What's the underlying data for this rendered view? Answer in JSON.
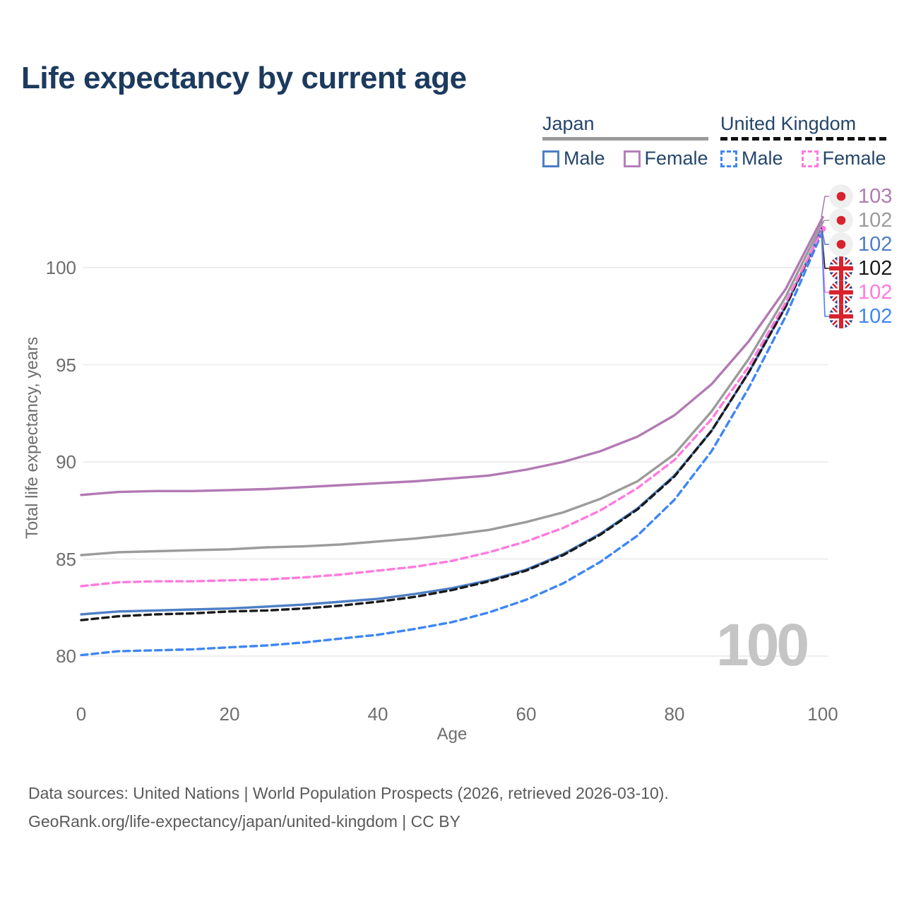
{
  "title": "Life expectancy by current age",
  "legend": {
    "groups": [
      {
        "label": "Japan",
        "items": [
          {
            "label": "Male"
          },
          {
            "label": "Female"
          }
        ]
      },
      {
        "label": "United Kingdom",
        "items": [
          {
            "label": "Male"
          },
          {
            "label": "Female"
          }
        ]
      }
    ]
  },
  "watermark": "100",
  "footer": {
    "line1": "Data sources: United Nations | World Population Prospects (2026, retrieved 2026-03-10).",
    "line2": "GeoRank.org/life-expectancy/japan/united-kingdom | CC BY"
  },
  "chart_data": {
    "type": "line",
    "title": "Life expectancy by current age",
    "xlabel": "Age",
    "ylabel": "Total life expectancy, years",
    "x_ticks": [
      0,
      20,
      40,
      60,
      80,
      100
    ],
    "y_ticks": [
      80,
      85,
      90,
      95,
      100
    ],
    "xlim": [
      0,
      100
    ],
    "ylim": [
      78.5,
      103.5
    ],
    "grid": "horizontal",
    "legend_position": "top-right",
    "x": [
      0,
      5,
      10,
      15,
      20,
      25,
      30,
      35,
      40,
      45,
      50,
      55,
      60,
      65,
      70,
      75,
      80,
      85,
      90,
      95,
      100
    ],
    "series": [
      {
        "id": "japan-male",
        "name": "Japan Male",
        "color": "#4d7fc4",
        "dash": "solid",
        "values": [
          82.15,
          82.3,
          82.35,
          82.4,
          82.45,
          82.55,
          82.65,
          82.8,
          82.95,
          83.2,
          83.5,
          83.9,
          84.45,
          85.25,
          86.3,
          87.6,
          89.3,
          91.6,
          94.6,
          98.0,
          102.1
        ]
      },
      {
        "id": "japan-all",
        "name": "Japan (both sexes)",
        "color": "#9b9b9b",
        "dash": "solid",
        "values": [
          85.2,
          85.35,
          85.4,
          85.45,
          85.5,
          85.6,
          85.65,
          85.75,
          85.9,
          86.05,
          86.25,
          86.5,
          86.9,
          87.4,
          88.1,
          89.0,
          90.4,
          92.6,
          95.3,
          98.5,
          102.35
        ]
      },
      {
        "id": "japan-female",
        "name": "Japan Female",
        "color": "#b279b4",
        "dash": "solid",
        "values": [
          88.3,
          88.45,
          88.5,
          88.5,
          88.55,
          88.6,
          88.7,
          88.8,
          88.9,
          89.0,
          89.15,
          89.3,
          89.6,
          90.0,
          90.55,
          91.3,
          92.4,
          94.0,
          96.2,
          98.9,
          102.6
        ]
      },
      {
        "id": "uk-male",
        "name": "United Kingdom Male",
        "color": "#3e86f5",
        "dash": "dashed",
        "values": [
          80.05,
          80.25,
          80.3,
          80.35,
          80.45,
          80.55,
          80.7,
          80.9,
          81.1,
          81.4,
          81.75,
          82.25,
          82.9,
          83.75,
          84.85,
          86.2,
          88.05,
          90.55,
          93.8,
          97.5,
          101.9
        ]
      },
      {
        "id": "uk-all",
        "name": "United Kingdom (both sexes)",
        "color": "#1a1a1a",
        "dash": "dashed",
        "values": [
          81.85,
          82.05,
          82.15,
          82.2,
          82.3,
          82.35,
          82.45,
          82.6,
          82.8,
          83.05,
          83.4,
          83.85,
          84.4,
          85.2,
          86.25,
          87.55,
          89.25,
          91.6,
          94.6,
          98.0,
          102.05
        ]
      },
      {
        "id": "uk-female",
        "name": "United Kingdom Female",
        "color": "#ff7ade",
        "dash": "dashed",
        "end_dot": true,
        "values": [
          83.6,
          83.8,
          83.85,
          83.85,
          83.9,
          83.95,
          84.05,
          84.2,
          84.4,
          84.6,
          84.9,
          85.35,
          85.9,
          86.6,
          87.5,
          88.65,
          90.1,
          92.2,
          94.9,
          98.2,
          102.0
        ]
      }
    ],
    "end_labels": [
      {
        "series": "japan-female",
        "text": "103",
        "flag": "jp",
        "color": "#b279b4"
      },
      {
        "series": "japan-all",
        "text": "102",
        "flag": "jp",
        "color": "#9b9b9b"
      },
      {
        "series": "japan-male",
        "text": "102",
        "flag": "jp",
        "color": "#4d7fc4"
      },
      {
        "series": "uk-all",
        "text": "102",
        "flag": "uk",
        "color": "#1a1a1a"
      },
      {
        "series": "uk-female",
        "text": "102",
        "flag": "uk",
        "color": "#ff7ade"
      },
      {
        "series": "uk-male",
        "text": "102",
        "flag": "uk",
        "color": "#3e86f5"
      }
    ],
    "flag_colors": {
      "jp_bg": "#efefef",
      "jp_dot": "#d8222e",
      "uk_blue": "#233c8f",
      "uk_red": "#d8222e",
      "uk_white": "#ffffff"
    },
    "gridline_color": "#e9e9e9"
  }
}
